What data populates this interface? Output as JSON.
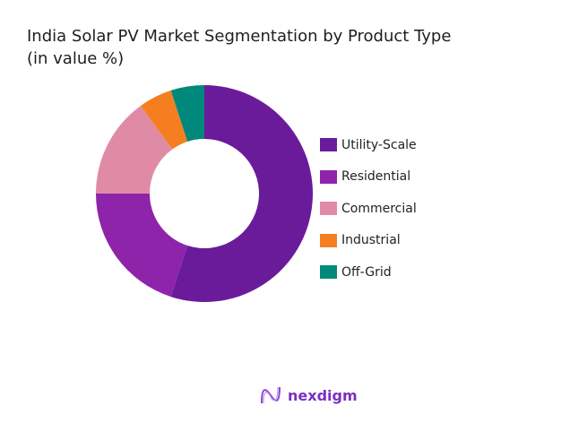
{
  "chart_data": {
    "type": "pie",
    "donut": true,
    "title": "India Solar PV Market Segmentation by Product Type",
    "subtitle": "(in value %)",
    "categories": [
      "Utility-Scale",
      "Residential",
      "Commercial",
      "Industrial",
      "Off-Grid"
    ],
    "values": [
      55,
      20,
      15,
      5,
      5
    ],
    "colors": [
      "#6a1b9a",
      "#8e24aa",
      "#e08ba5",
      "#f57f20",
      "#00897b"
    ],
    "legend_position": "right"
  },
  "logo": {
    "text": "nexdigm"
  }
}
